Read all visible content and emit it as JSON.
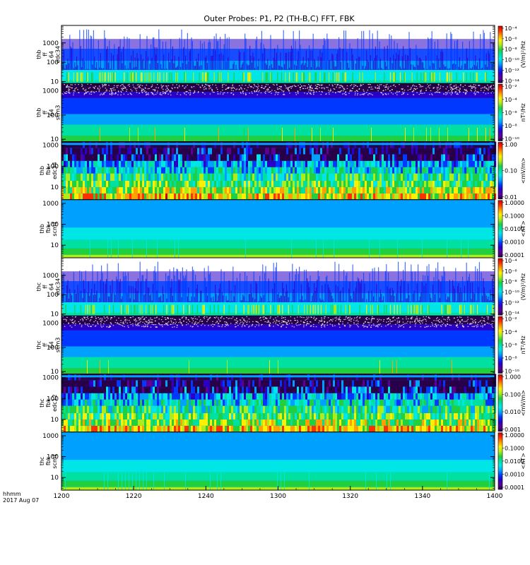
{
  "chart_data": {
    "type": "heatmap",
    "title": "Outer Probes: P1, P2 (TH-B,C) FFT, FBK",
    "x_tick_labels": [
      "1200",
      "1220",
      "1240",
      "1300",
      "1320",
      "1340",
      "1400"
    ],
    "x_range_minutes": [
      0,
      120
    ],
    "x_footer": [
      "hhmm",
      "2017 Aug 07"
    ],
    "colorbar_colors": [
      "#28004a",
      "#5a0096",
      "#2a00c8",
      "#0038ff",
      "#00a0ff",
      "#00e6e6",
      "#00e0a0",
      "#20d040",
      "#b0ec1a",
      "#fff000",
      "#ffa000",
      "#ff3000",
      "#c80000"
    ],
    "panels": [
      {
        "label_lines": [
          "thb",
          "ff",
          "64",
          "edc34"
        ],
        "yrange_hz": [
          8,
          8000
        ],
        "y_tick_labels": [
          "1000",
          "100",
          "10"
        ],
        "y_tick_values": [
          1000,
          100,
          10
        ],
        "colorbar_labels": [
          "10⁻⁴",
          "10⁻⁶",
          "10⁻⁸",
          "10⁻¹⁰",
          "10⁻¹²",
          "10⁻¹⁴"
        ],
        "units": "(V/m)²/Hz",
        "style": "efield_ff"
      },
      {
        "label_lines": [
          "thb",
          "ff",
          "64",
          "scm3"
        ],
        "yrange_hz": [
          8,
          2000
        ],
        "y_tick_labels": [
          "1000",
          "100",
          "10"
        ],
        "y_tick_values": [
          1000,
          100,
          10
        ],
        "colorbar_labels": [
          "10⁻²",
          "10⁻⁴",
          "10⁻⁶",
          "10⁻⁸",
          "10⁻¹⁰"
        ],
        "units": "nT²/Hz",
        "style": "scm_ff"
      },
      {
        "label_lines": [
          "thb",
          "fbk",
          "edc34"
        ],
        "yrange_hz": [
          2.5,
          1500
        ],
        "y_tick_labels": [
          "1000",
          "100",
          "10"
        ],
        "y_tick_values": [
          1000,
          100,
          10
        ],
        "colorbar_labels": [
          "1.00",
          "0.10",
          "0.01"
        ],
        "units": "<mV/m>",
        "style": "fbk_e"
      },
      {
        "label_lines": [
          "thb",
          "fbk",
          "scm1"
        ],
        "yrange_hz": [
          2.5,
          1500
        ],
        "y_tick_labels": [
          "1000",
          "100",
          "10"
        ],
        "y_tick_values": [
          1000,
          100,
          10
        ],
        "colorbar_labels": [
          "1.0000",
          "0.1000",
          "0.0100",
          "0.0010",
          "0.0001"
        ],
        "units": "<nT>",
        "style": "fbk_b"
      },
      {
        "label_lines": [
          "thc",
          "ff",
          "64",
          "edc34"
        ],
        "yrange_hz": [
          8,
          8000
        ],
        "y_tick_labels": [
          "1000",
          "100",
          "10"
        ],
        "y_tick_values": [
          1000,
          100,
          10
        ],
        "colorbar_labels": [
          "10⁻⁴",
          "10⁻⁶",
          "10⁻⁸",
          "10⁻¹⁰",
          "10⁻¹²",
          "10⁻¹⁴"
        ],
        "units": "(V/m)²/Hz",
        "style": "efield_ff"
      },
      {
        "label_lines": [
          "thc",
          "ff",
          "64",
          "scm3"
        ],
        "yrange_hz": [
          8,
          2000
        ],
        "y_tick_labels": [
          "1000",
          "100",
          "10"
        ],
        "y_tick_values": [
          1000,
          100,
          10
        ],
        "colorbar_labels": [
          "10⁻²",
          "10⁻⁴",
          "10⁻⁶",
          "10⁻⁸",
          "10⁻¹⁰"
        ],
        "units": "nT²/Hz",
        "style": "scm_ff"
      },
      {
        "label_lines": [
          "thc",
          "fbk",
          "edc12"
        ],
        "yrange_hz": [
          2.5,
          1500
        ],
        "y_tick_labels": [
          "1000",
          "100",
          "10"
        ],
        "y_tick_values": [
          1000,
          100,
          10
        ],
        "colorbar_labels": [
          "1.000",
          "0.100",
          "0.010",
          "0.001"
        ],
        "units": "<mV/m>",
        "style": "fbk_e"
      },
      {
        "label_lines": [
          "thc",
          "fbk",
          "scm1"
        ],
        "yrange_hz": [
          2.5,
          1500
        ],
        "y_tick_labels": [
          "1000",
          "100",
          "10"
        ],
        "y_tick_values": [
          1000,
          100,
          10
        ],
        "colorbar_labels": [
          "1.0000",
          "0.1000",
          "0.0100",
          "0.0010",
          "0.0001"
        ],
        "units": "<nT>",
        "style": "fbk_b"
      }
    ]
  }
}
